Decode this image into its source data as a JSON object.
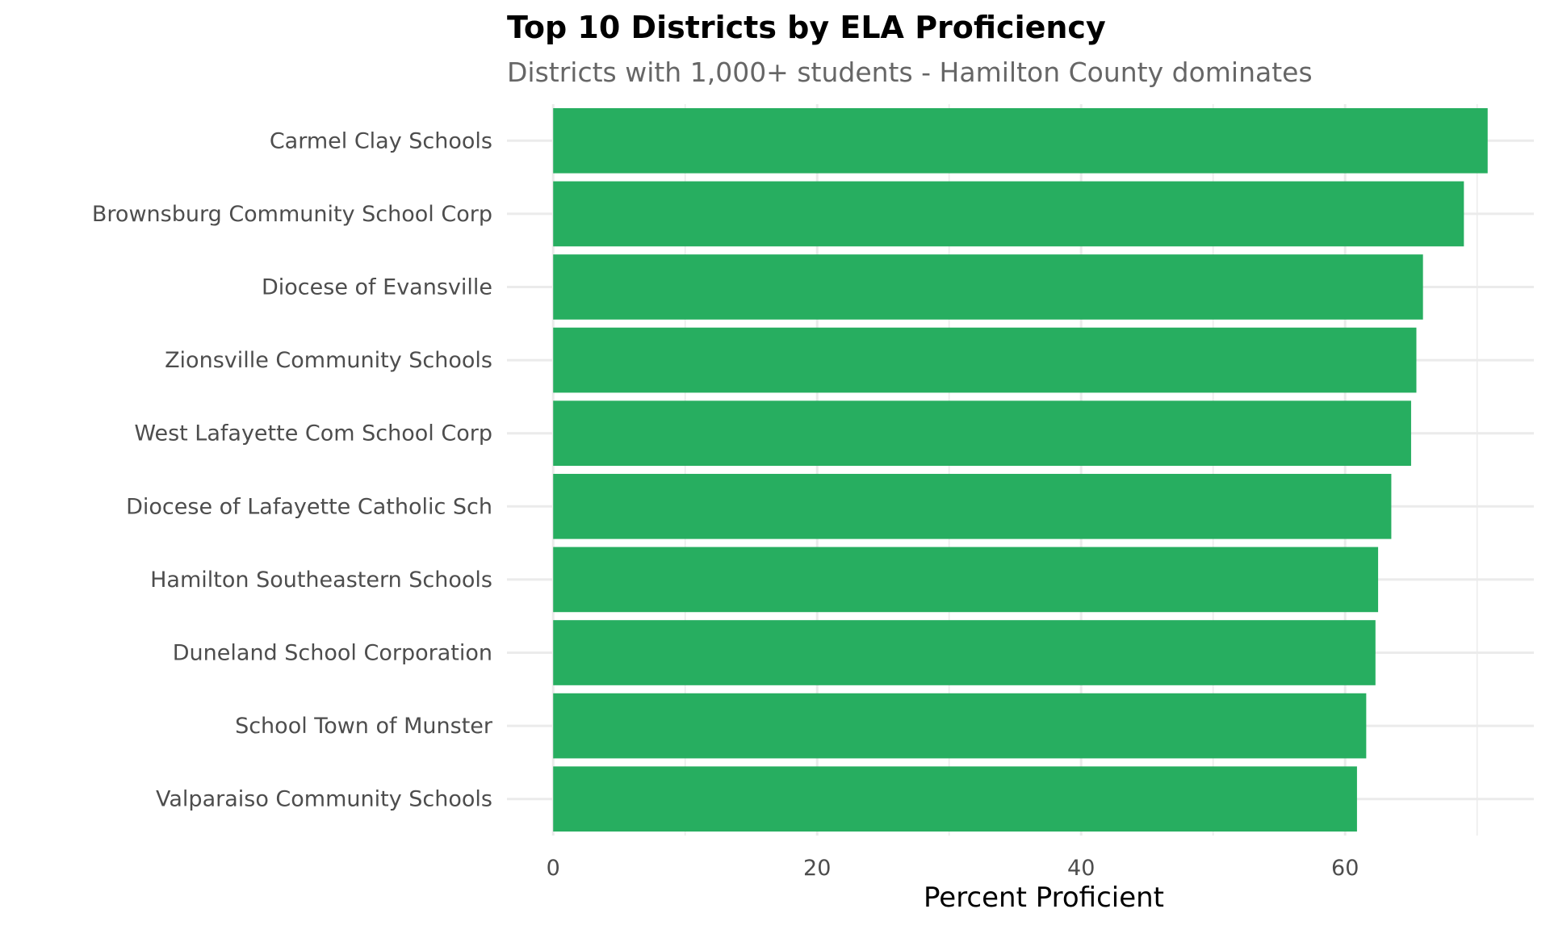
{
  "chart_data": {
    "type": "bar",
    "orientation": "horizontal",
    "title": "Top 10 Districts by ELA Proficiency",
    "subtitle": "Districts with 1,000+ students - Hamilton County dominates",
    "xlabel": "Percent Proficient",
    "ylabel": "",
    "categories": [
      "Carmel Clay Schools",
      "Brownsburg Community School Corp",
      "Diocese of Evansville",
      "Zionsville Community Schools",
      "West Lafayette Com School Corp",
      "Diocese of Lafayette Catholic Sch",
      "Hamilton Southeastern Schools",
      "Duneland School Corporation",
      "School Town of Munster",
      "Valparaiso Community Schools"
    ],
    "values": [
      70.8,
      69.0,
      65.9,
      65.4,
      65.0,
      63.5,
      62.5,
      62.3,
      61.6,
      60.9
    ],
    "xticks": [
      "0",
      "20",
      "40",
      "60"
    ],
    "xlim": [
      -3.5,
      74.3
    ],
    "grid": true,
    "bar_color": "#27AE60",
    "grid_color": "#EBEBEB"
  }
}
